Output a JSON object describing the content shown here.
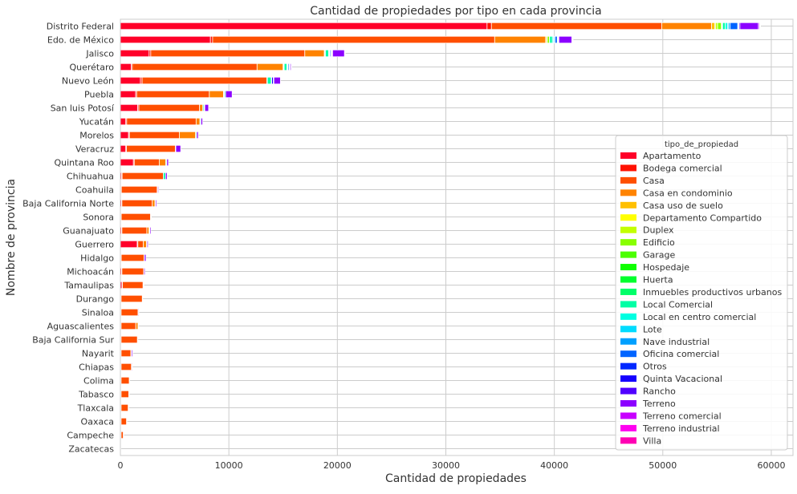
{
  "chart_data": {
    "type": "bar",
    "orientation": "horizontal",
    "stacked": true,
    "title": "Cantidad de propiedades por tipo en cada provincia",
    "xlabel": "Cantidad de propiedades",
    "ylabel": "Nombre de provincia",
    "xlim": [
      0,
      62000
    ],
    "xticks": [
      0,
      10000,
      20000,
      30000,
      40000,
      50000,
      60000
    ],
    "grid": true,
    "legend_title": "tipo_de_propiedad",
    "legend_position": "right",
    "categories": [
      "Distrito Federal",
      "Edo. de México",
      "Jalisco",
      "Querétaro",
      "Nuevo León",
      "Puebla",
      "San luis Potosí",
      "Yucatán",
      "Morelos",
      "Veracruz",
      "Quintana Roo",
      "Chihuahua",
      "Coahuila",
      "Baja California Norte",
      "Sonora",
      "Guanajuato",
      "Guerrero",
      "Hidalgo",
      "Michoacán",
      "Tamaulipas",
      "Durango",
      "Sinaloa",
      "Aguascalientes",
      "Baja California Sur",
      "Nayarit",
      "Chiapas",
      "Colima",
      "Tabasco",
      "Tlaxcala",
      "Oaxaca",
      "Campeche",
      "Zacatecas"
    ],
    "series": [
      {
        "name": "Apartamento",
        "color": "#ff0029",
        "values": [
          33800,
          8300,
          2650,
          1000,
          1850,
          1400,
          1600,
          500,
          750,
          500,
          1200,
          100,
          50,
          100,
          50,
          100,
          1550,
          50,
          100,
          150,
          50,
          50,
          50,
          50,
          50,
          50,
          50,
          50,
          50,
          50,
          50,
          0
        ]
      },
      {
        "name": "Bodega comercial",
        "color": "#ff1100",
        "values": [
          400,
          200,
          150,
          100,
          150,
          100,
          100,
          80,
          80,
          60,
          80,
          60,
          40,
          40,
          30,
          40,
          60,
          30,
          40,
          40,
          20,
          20,
          20,
          20,
          20,
          20,
          20,
          20,
          20,
          20,
          20,
          0
        ]
      },
      {
        "name": "Casa",
        "color": "#ff4f00",
        "values": [
          15700,
          26000,
          14200,
          11500,
          11500,
          6700,
          5600,
          6400,
          4600,
          4500,
          2300,
          3800,
          3300,
          2800,
          2700,
          2300,
          500,
          2100,
          2000,
          1900,
          1950,
          1550,
          1350,
          1500,
          900,
          950,
          750,
          700,
          650,
          500,
          200,
          50
        ]
      },
      {
        "name": "Casa en condominio",
        "color": "#ff8300",
        "values": [
          4600,
          4700,
          1800,
          2400,
          0,
          1300,
          300,
          350,
          1500,
          0,
          600,
          0,
          0,
          250,
          0,
          200,
          300,
          0,
          0,
          0,
          0,
          0,
          200,
          0,
          50,
          0,
          0,
          0,
          0,
          0,
          0,
          0
        ]
      },
      {
        "name": "Casa uso de suelo",
        "color": "#ffc000",
        "values": [
          300,
          100,
          50,
          50,
          0,
          50,
          0,
          0,
          0,
          0,
          0,
          0,
          0,
          0,
          0,
          0,
          0,
          0,
          0,
          0,
          0,
          0,
          0,
          0,
          0,
          0,
          0,
          0,
          0,
          0,
          0,
          0
        ]
      },
      {
        "name": "Departamento Compartido",
        "color": "#ffff00",
        "values": [
          50,
          0,
          0,
          0,
          0,
          0,
          0,
          0,
          0,
          0,
          0,
          0,
          0,
          0,
          0,
          0,
          0,
          0,
          0,
          0,
          0,
          0,
          0,
          0,
          0,
          0,
          0,
          0,
          0,
          0,
          0,
          0
        ]
      },
      {
        "name": "Duplex",
        "color": "#c3ff00",
        "values": [
          200,
          50,
          0,
          0,
          0,
          0,
          0,
          0,
          0,
          0,
          0,
          0,
          0,
          0,
          0,
          0,
          0,
          0,
          0,
          0,
          0,
          0,
          0,
          0,
          0,
          0,
          0,
          0,
          0,
          0,
          0,
          0
        ]
      },
      {
        "name": "Edificio",
        "color": "#88ff00",
        "values": [
          350,
          200,
          50,
          50,
          50,
          50,
          30,
          0,
          0,
          0,
          0,
          0,
          0,
          0,
          0,
          0,
          0,
          0,
          0,
          0,
          0,
          0,
          0,
          0,
          0,
          0,
          0,
          0,
          0,
          0,
          0,
          0
        ]
      },
      {
        "name": "Garage",
        "color": "#4bff00",
        "values": [
          50,
          0,
          0,
          0,
          0,
          0,
          0,
          0,
          0,
          0,
          0,
          0,
          0,
          0,
          0,
          0,
          0,
          0,
          0,
          0,
          0,
          0,
          0,
          0,
          0,
          0,
          0,
          0,
          0,
          0,
          0,
          0
        ]
      },
      {
        "name": "Hospedaje",
        "color": "#0fff00",
        "values": [
          20,
          0,
          0,
          0,
          0,
          0,
          0,
          0,
          0,
          0,
          0,
          0,
          0,
          0,
          0,
          0,
          0,
          0,
          0,
          0,
          0,
          0,
          0,
          0,
          0,
          0,
          0,
          0,
          0,
          0,
          0,
          0
        ]
      },
      {
        "name": "Huerta",
        "color": "#00ff2d",
        "values": [
          20,
          0,
          0,
          0,
          0,
          0,
          0,
          0,
          0,
          0,
          0,
          0,
          0,
          0,
          0,
          0,
          0,
          0,
          0,
          0,
          0,
          0,
          0,
          0,
          0,
          0,
          0,
          0,
          0,
          0,
          0,
          0
        ]
      },
      {
        "name": "Inmuebles productivos urbanos",
        "color": "#00ff69",
        "values": [
          20,
          20,
          0,
          0,
          0,
          0,
          0,
          0,
          0,
          0,
          0,
          0,
          0,
          0,
          0,
          0,
          0,
          0,
          0,
          0,
          0,
          0,
          0,
          0,
          0,
          0,
          0,
          0,
          0,
          0,
          0,
          0
        ]
      },
      {
        "name": "Local Comercial",
        "color": "#00ffa5",
        "values": [
          250,
          250,
          300,
          250,
          350,
          100,
          100,
          80,
          80,
          50,
          80,
          200,
          50,
          50,
          40,
          50,
          50,
          30,
          30,
          30,
          20,
          20,
          20,
          20,
          20,
          20,
          20,
          20,
          20,
          20,
          10,
          0
        ]
      },
      {
        "name": "Local en centro comercial",
        "color": "#00ffe1",
        "values": [
          200,
          100,
          50,
          50,
          50,
          0,
          0,
          0,
          0,
          0,
          0,
          0,
          0,
          0,
          0,
          0,
          0,
          0,
          0,
          0,
          0,
          0,
          0,
          0,
          0,
          0,
          0,
          0,
          0,
          0,
          0,
          0
        ]
      },
      {
        "name": "Lote",
        "color": "#00dcff",
        "values": [
          100,
          50,
          30,
          20,
          0,
          0,
          0,
          0,
          0,
          0,
          0,
          0,
          0,
          0,
          0,
          0,
          0,
          0,
          0,
          0,
          0,
          0,
          0,
          0,
          0,
          0,
          0,
          0,
          0,
          0,
          0,
          0
        ]
      },
      {
        "name": "Nave industrial",
        "color": "#00a0ff",
        "values": [
          150,
          100,
          50,
          50,
          0,
          0,
          0,
          0,
          0,
          0,
          0,
          0,
          0,
          0,
          0,
          0,
          0,
          0,
          0,
          0,
          0,
          0,
          0,
          0,
          0,
          0,
          0,
          0,
          0,
          0,
          0,
          0
        ]
      },
      {
        "name": "Oficina comercial",
        "color": "#0064ff",
        "values": [
          700,
          200,
          100,
          100,
          0,
          0,
          0,
          0,
          0,
          0,
          0,
          0,
          0,
          0,
          0,
          0,
          0,
          0,
          0,
          0,
          0,
          0,
          0,
          0,
          0,
          0,
          0,
          0,
          0,
          0,
          0,
          0
        ]
      },
      {
        "name": "Otros",
        "color": "#0028ff",
        "values": [
          50,
          50,
          30,
          20,
          0,
          0,
          0,
          0,
          0,
          0,
          0,
          0,
          0,
          0,
          0,
          0,
          0,
          0,
          0,
          0,
          0,
          0,
          0,
          0,
          0,
          0,
          0,
          0,
          0,
          0,
          0,
          0
        ]
      },
      {
        "name": "Quinta Vacacional",
        "color": "#1400ff",
        "values": [
          50,
          50,
          50,
          20,
          150,
          0,
          0,
          0,
          0,
          0,
          0,
          0,
          0,
          0,
          0,
          0,
          0,
          0,
          0,
          0,
          0,
          0,
          0,
          0,
          0,
          0,
          0,
          0,
          0,
          0,
          0,
          0
        ]
      },
      {
        "name": "Rancho",
        "color": "#5000ff",
        "values": [
          100,
          50,
          50,
          30,
          50,
          0,
          50,
          20,
          20,
          0,
          20,
          0,
          0,
          0,
          0,
          20,
          0,
          0,
          0,
          0,
          0,
          0,
          0,
          0,
          0,
          0,
          0,
          0,
          0,
          0,
          0,
          0
        ]
      },
      {
        "name": "Terreno",
        "color": "#8c00ff",
        "values": [
          1700,
          1200,
          1100,
          100,
          600,
          600,
          350,
          150,
          150,
          450,
          150,
          150,
          80,
          100,
          30,
          100,
          100,
          150,
          100,
          50,
          0,
          60,
          0,
          0,
          100,
          60,
          0,
          0,
          0,
          0,
          0,
          0
        ]
      },
      {
        "name": "Terreno comercial",
        "color": "#c800ff",
        "values": [
          100,
          50,
          30,
          20,
          0,
          0,
          0,
          0,
          0,
          0,
          0,
          0,
          0,
          0,
          0,
          0,
          0,
          0,
          0,
          0,
          0,
          0,
          0,
          0,
          0,
          0,
          0,
          0,
          0,
          0,
          0,
          0
        ]
      },
      {
        "name": "Terreno industrial",
        "color": "#ff00f0",
        "values": [
          50,
          20,
          0,
          0,
          0,
          0,
          0,
          0,
          0,
          0,
          0,
          0,
          0,
          0,
          0,
          0,
          0,
          0,
          0,
          0,
          0,
          0,
          0,
          0,
          0,
          0,
          0,
          0,
          0,
          0,
          0,
          0
        ]
      },
      {
        "name": "Villa",
        "color": "#ff00b4",
        "values": [
          50,
          20,
          20,
          10,
          0,
          0,
          0,
          0,
          0,
          0,
          0,
          0,
          0,
          0,
          0,
          0,
          0,
          0,
          0,
          0,
          0,
          0,
          0,
          0,
          0,
          0,
          0,
          0,
          0,
          0,
          0,
          0
        ]
      }
    ]
  }
}
